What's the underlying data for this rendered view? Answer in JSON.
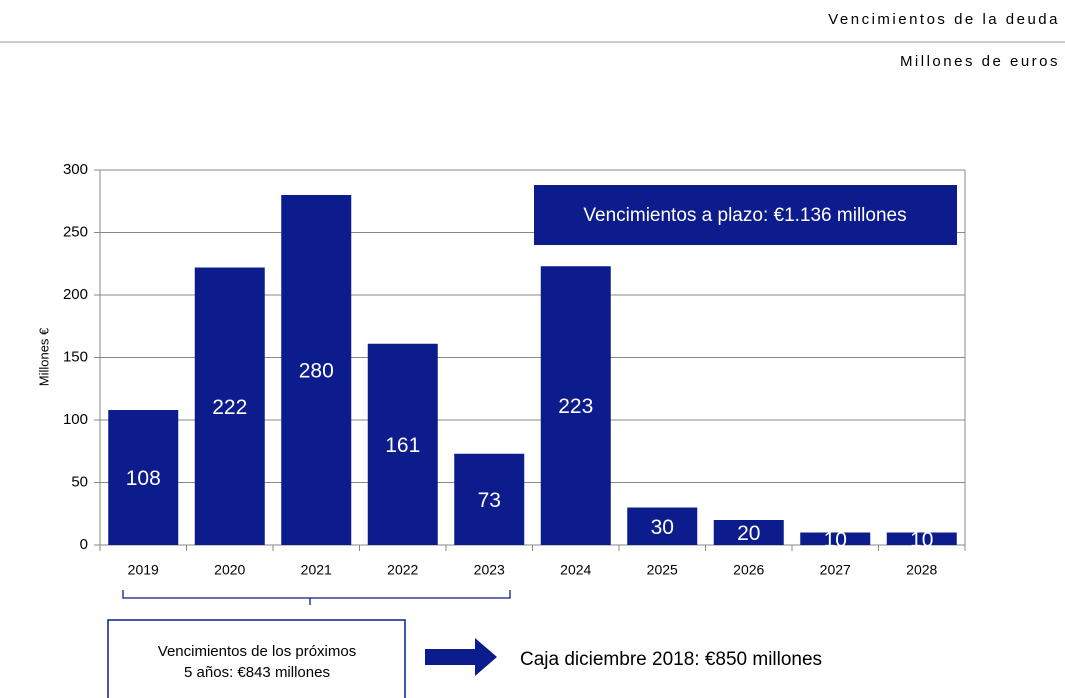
{
  "header": {
    "title": "Vencimientos de la deuda",
    "subtitle": "Millones de euros"
  },
  "chart_data": {
    "type": "bar",
    "y_label": "Millones €",
    "categories": [
      "2019",
      "2020",
      "2021",
      "2022",
      "2023",
      "2024",
      "2025",
      "2026",
      "2027",
      "2028"
    ],
    "values": [
      108,
      222,
      280,
      161,
      73,
      223,
      30,
      20,
      10,
      10
    ],
    "color": "#0c1c8c",
    "ylim": [
      0,
      300
    ],
    "yticks": [
      0,
      50,
      100,
      150,
      200,
      250,
      300
    ],
    "grid": true,
    "annotations": {
      "long_term": "Vencimientos a plazo: €1.136 millones",
      "five_years": [
        "Vencimientos de los próximos",
        "5 años: €843 millones"
      ],
      "cash": "Caja diciembre 2018: €850 millones"
    }
  }
}
